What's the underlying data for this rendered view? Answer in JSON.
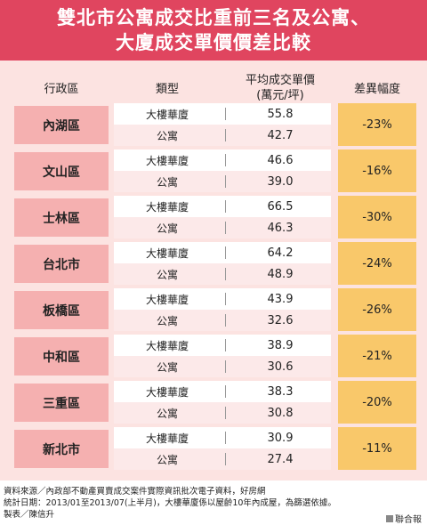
{
  "header": {
    "title_line1": "雙北市公寓成交比重前三名及公寓、",
    "title_line2": "大廈成交單價價差比較"
  },
  "columns": {
    "district": "行政區",
    "type": "類型",
    "price_line1": "平均成交單價",
    "price_line2": "(萬元/坪)",
    "diff": "差異幅度"
  },
  "chart_data": {
    "type": "table",
    "title": "雙北市公寓成交比重前三名及公寓、大廈成交單價價差比較",
    "columns": [
      "行政區",
      "類型",
      "平均成交單價(萬元/坪)",
      "差異幅度"
    ],
    "rows": [
      {
        "district": "內湖區",
        "building_label": "大樓華廈",
        "building_price": "55.8",
        "apartment_label": "公寓",
        "apartment_price": "42.7",
        "diff": "-23%"
      },
      {
        "district": "文山區",
        "building_label": "大樓華廈",
        "building_price": "46.6",
        "apartment_label": "公寓",
        "apartment_price": "39.0",
        "diff": "-16%"
      },
      {
        "district": "士林區",
        "building_label": "大樓華廈",
        "building_price": "66.5",
        "apartment_label": "公寓",
        "apartment_price": "46.3",
        "diff": "-30%"
      },
      {
        "district": "台北市",
        "building_label": "大樓華廈",
        "building_price": "64.2",
        "apartment_label": "公寓",
        "apartment_price": "48.9",
        "diff": "-24%"
      },
      {
        "district": "板橋區",
        "building_label": "大樓華廈",
        "building_price": "43.9",
        "apartment_label": "公寓",
        "apartment_price": "32.6",
        "diff": "-26%"
      },
      {
        "district": "中和區",
        "building_label": "大樓華廈",
        "building_price": "38.9",
        "apartment_label": "公寓",
        "apartment_price": "30.6",
        "diff": "-21%"
      },
      {
        "district": "三重區",
        "building_label": "大樓華廈",
        "building_price": "38.3",
        "apartment_label": "公寓",
        "apartment_price": "30.8",
        "diff": "-20%"
      },
      {
        "district": "新北市",
        "building_label": "大樓華廈",
        "building_price": "30.9",
        "apartment_label": "公寓",
        "apartment_price": "27.4",
        "diff": "-11%"
      }
    ]
  },
  "footer": {
    "source": "資料來源／內政部不動產買賣成交案件實際資訊批次電子資料，好房網",
    "period": "統計日期：2013/01至2013/07(上半月)，大樓華廈係以屋齡10年內成屋，為篩選依據。",
    "credit": "製表／陳信升",
    "brand": "聯合報"
  },
  "colors": {
    "header_bg": "#e0455f",
    "panel_bg": "#fce3e1",
    "district_bg": "#f5b0b0",
    "diff_bg": "#f9c86a"
  }
}
